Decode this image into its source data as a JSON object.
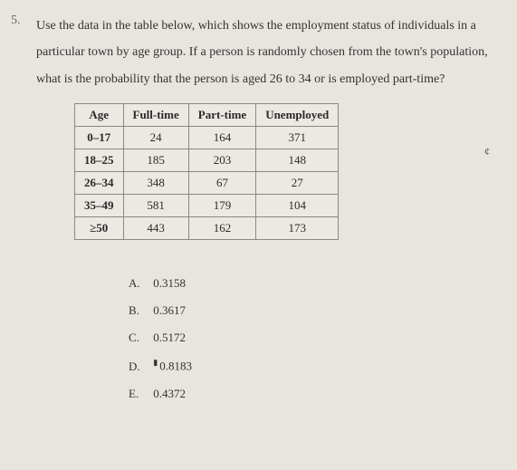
{
  "question": {
    "number": "5.",
    "text": "Use the data in the table below, which shows the employment status of individuals in a particular town by age group. If a person is randomly chosen from the town's population, what is the probability that the person is aged 26 to 34 or is employed part-time?"
  },
  "table": {
    "headers": [
      "Age",
      "Full-time",
      "Part-time",
      "Unemployed"
    ],
    "rows": [
      [
        "0–17",
        "24",
        "164",
        "371"
      ],
      [
        "18–25",
        "185",
        "203",
        "148"
      ],
      [
        "26–34",
        "348",
        "67",
        "27"
      ],
      [
        "35–49",
        "581",
        "179",
        "104"
      ],
      [
        "≥50",
        "443",
        "162",
        "173"
      ]
    ],
    "styling": {
      "border_color": "#888888",
      "background": "#ece9e3",
      "header_fontweight": "bold",
      "cell_fontsize": 13,
      "cell_padding": "4px 10px"
    }
  },
  "answers": [
    {
      "letter": "A.",
      "value": "0.3158",
      "cursor": false
    },
    {
      "letter": "B.",
      "value": "0.3617",
      "cursor": false
    },
    {
      "letter": "C.",
      "value": "0.5172",
      "cursor": false
    },
    {
      "letter": "D.",
      "value": "0.8183",
      "cursor": true
    },
    {
      "letter": "E.",
      "value": "0.4372",
      "cursor": false
    }
  ],
  "colors": {
    "page_background": "#e8e5df",
    "text": "#333333",
    "qnum": "#666666"
  }
}
